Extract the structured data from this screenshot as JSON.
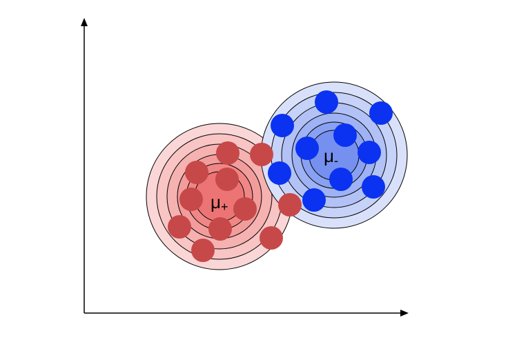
{
  "clusters": {
    "positive": {
      "label": "μ+",
      "ring_colors": [
        "#fbd6d6",
        "#f8c4c4",
        "#f6b1b1",
        "#f39c9c",
        "#f08686",
        "#ed7474"
      ],
      "point_color": "#c74848"
    },
    "negative": {
      "label": "μ-",
      "ring_colors": [
        "#d9e1fa",
        "#c6d2f8",
        "#b2c2f6",
        "#9eb2f4",
        "#89a1f2",
        "#7690f0"
      ],
      "point_color": "#0a32f0"
    }
  },
  "colors": {
    "axis": "#000000",
    "ring_stroke": "#000000"
  }
}
